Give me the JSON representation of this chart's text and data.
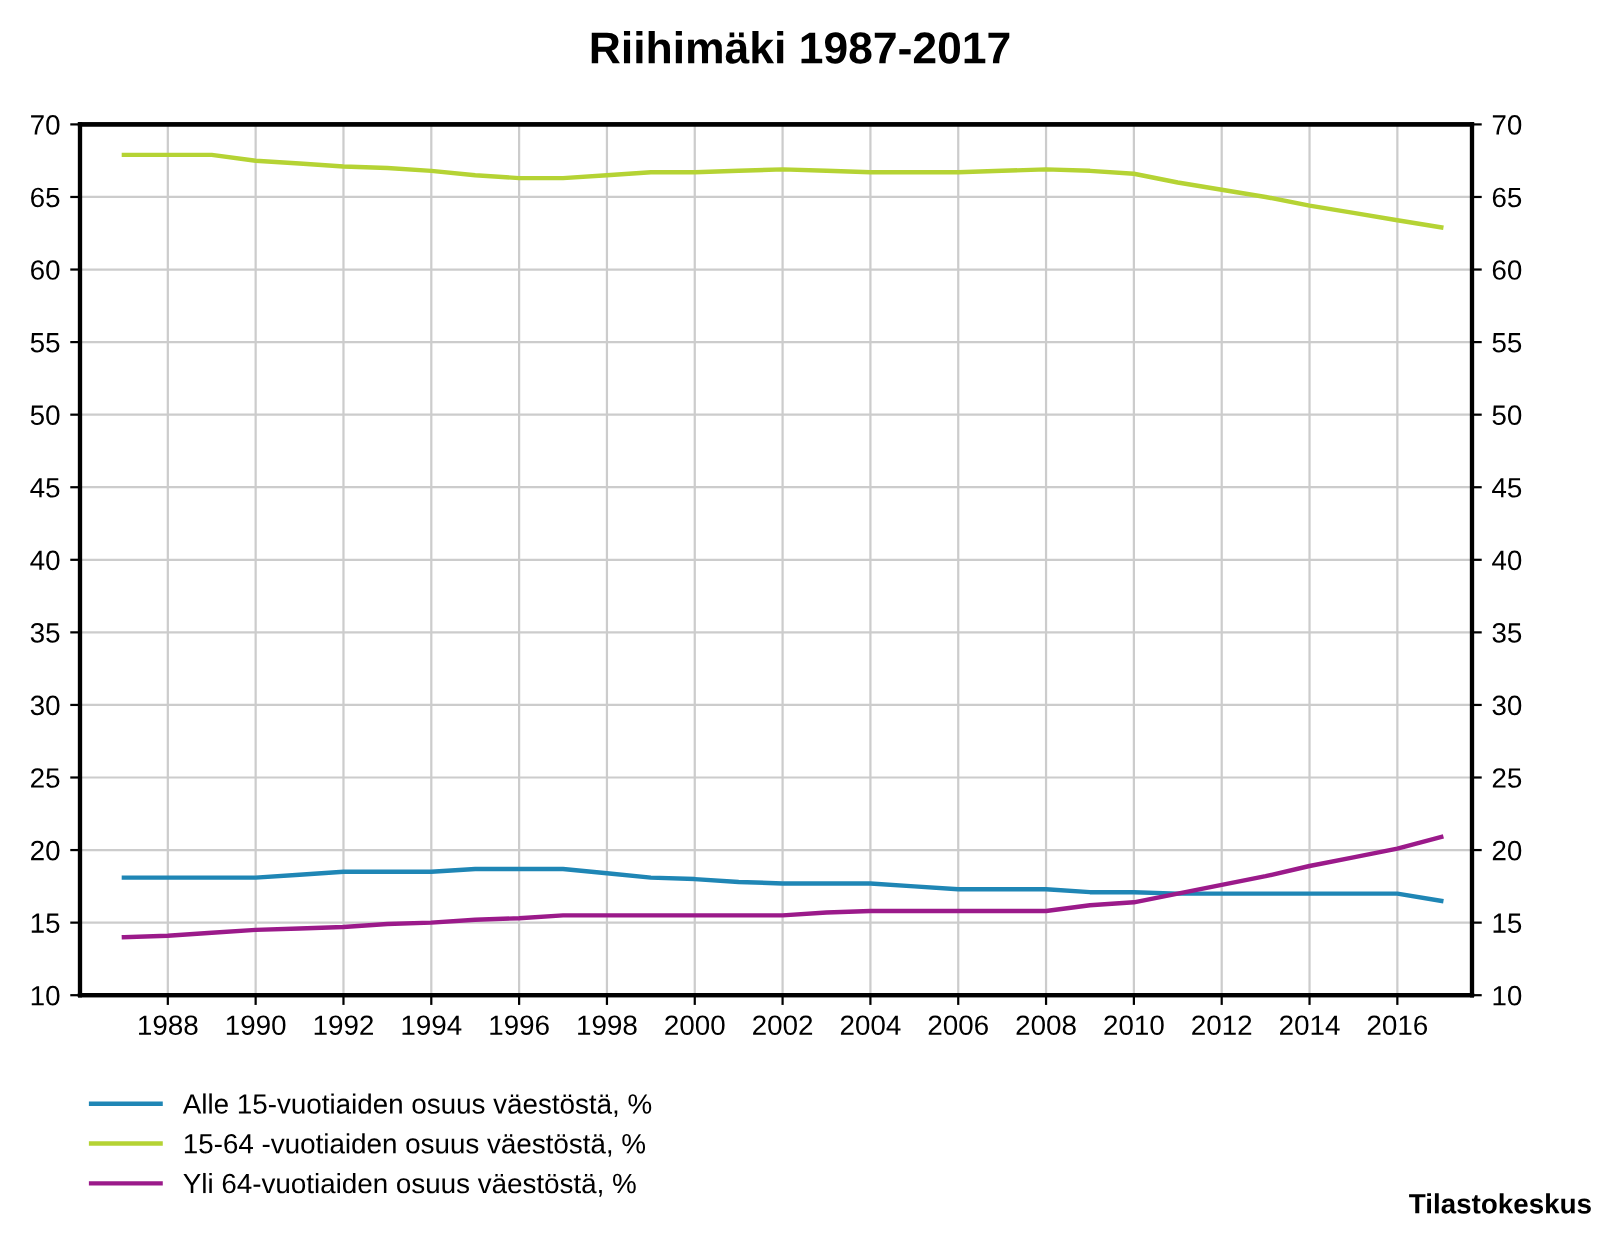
{
  "chart_data": {
    "type": "line",
    "title": "Riihimäki 1987-2017",
    "x": [
      1987,
      1988,
      1989,
      1990,
      1991,
      1992,
      1993,
      1994,
      1995,
      1996,
      1997,
      1998,
      1999,
      2000,
      2001,
      2002,
      2003,
      2004,
      2005,
      2006,
      2007,
      2008,
      2009,
      2010,
      2011,
      2012,
      2013,
      2014,
      2015,
      2016,
      2017
    ],
    "series": [
      {
        "name": "Alle 15-vuotiaiden osuus väestöstä, %",
        "color": "#1f86b5",
        "values": [
          18.1,
          18.1,
          18.1,
          18.1,
          18.3,
          18.5,
          18.5,
          18.5,
          18.7,
          18.7,
          18.7,
          18.4,
          18.1,
          18.0,
          17.8,
          17.7,
          17.7,
          17.7,
          17.5,
          17.3,
          17.3,
          17.3,
          17.1,
          17.1,
          17.0,
          17.0,
          17.0,
          17.0,
          17.0,
          17.0,
          16.5
        ]
      },
      {
        "name": "15-64 -vuotiaiden osuus väestöstä, %",
        "color": "#b5d334",
        "values": [
          67.9,
          67.9,
          67.9,
          67.5,
          67.3,
          67.1,
          67.0,
          66.8,
          66.5,
          66.3,
          66.3,
          66.5,
          66.7,
          66.7,
          66.8,
          66.9,
          66.8,
          66.7,
          66.7,
          66.7,
          66.8,
          66.9,
          66.8,
          66.6,
          66.0,
          65.5,
          65.0,
          64.4,
          63.9,
          63.4,
          62.9
        ]
      },
      {
        "name": "Yli 64-vuotiaiden osuus väestöstä, %",
        "color": "#9b1a8a",
        "values": [
          14.0,
          14.1,
          14.3,
          14.5,
          14.6,
          14.7,
          14.9,
          15.0,
          15.2,
          15.3,
          15.5,
          15.5,
          15.5,
          15.5,
          15.5,
          15.5,
          15.7,
          15.8,
          15.8,
          15.8,
          15.8,
          15.8,
          16.2,
          16.4,
          17.0,
          17.6,
          18.2,
          18.9,
          19.5,
          20.1,
          20.9
        ]
      }
    ],
    "xlim": [
      1986,
      2017.7
    ],
    "xticks": [
      1988,
      1990,
      1992,
      1994,
      1996,
      1998,
      2000,
      2002,
      2004,
      2006,
      2008,
      2010,
      2012,
      2014,
      2016
    ],
    "ylim": [
      10,
      70
    ],
    "yticks": [
      10,
      15,
      20,
      25,
      30,
      35,
      40,
      45,
      50,
      55,
      60,
      65,
      70
    ],
    "y2lim": [
      10,
      70
    ],
    "y2ticks": [
      10,
      15,
      20,
      25,
      30,
      35,
      40,
      45,
      50,
      55,
      60,
      65,
      70
    ],
    "grid": true,
    "legend": "bottom left",
    "marker": "none",
    "line_style": "solid",
    "annotations": [
      "Tilastokeskus"
    ]
  }
}
